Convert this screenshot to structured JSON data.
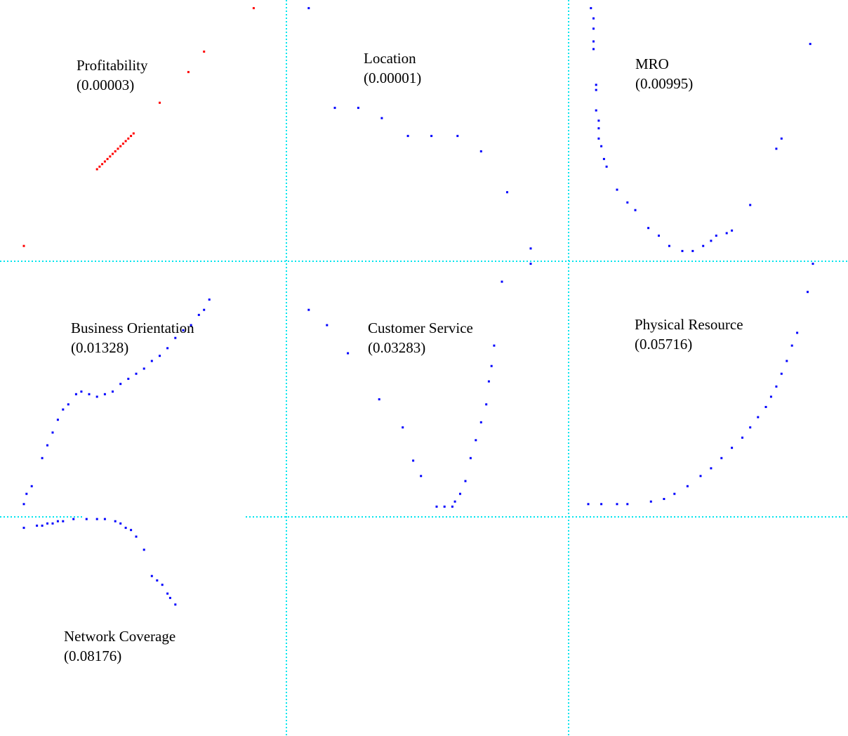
{
  "colors": {
    "grid": "#00e5ee",
    "highlight_series": "#ff0000",
    "series": "#0000ff",
    "background": "#ffffff"
  },
  "chart_data": {
    "type": "scatter",
    "grid": true,
    "axes_visible": false,
    "panels": [
      {
        "label": "Profitability",
        "value": "(0.00003)",
        "color": "#ff0000",
        "points": [
          [
            0.07,
            0.06
          ],
          [
            0.35,
            0.36
          ],
          [
            0.36,
            0.37
          ],
          [
            0.37,
            0.38
          ],
          [
            0.38,
            0.39
          ],
          [
            0.39,
            0.4
          ],
          [
            0.4,
            0.41
          ],
          [
            0.41,
            0.42
          ],
          [
            0.42,
            0.43
          ],
          [
            0.43,
            0.44
          ],
          [
            0.44,
            0.45
          ],
          [
            0.45,
            0.46
          ],
          [
            0.46,
            0.47
          ],
          [
            0.47,
            0.48
          ],
          [
            0.48,
            0.49
          ],
          [
            0.49,
            0.5
          ],
          [
            0.59,
            0.62
          ],
          [
            0.7,
            0.74
          ],
          [
            0.76,
            0.82
          ],
          [
            0.95,
            0.99
          ]
        ]
      },
      {
        "label": "Location",
        "value": "(0.00001)",
        "color": "#0000ff",
        "points": [
          [
            0.08,
            0.99
          ],
          [
            0.18,
            0.6
          ],
          [
            0.27,
            0.6
          ],
          [
            0.36,
            0.56
          ],
          [
            0.46,
            0.49
          ],
          [
            0.55,
            0.49
          ],
          [
            0.65,
            0.49
          ],
          [
            0.74,
            0.43
          ],
          [
            0.84,
            0.27
          ],
          [
            0.93,
            0.05
          ],
          [
            0.93,
            -0.01
          ]
        ]
      },
      {
        "label": "MRO",
        "value": "(0.00995)",
        "color": "#0000ff",
        "points": [
          [
            0.08,
            0.99
          ],
          [
            0.09,
            0.95
          ],
          [
            0.09,
            0.91
          ],
          [
            0.09,
            0.86
          ],
          [
            0.09,
            0.83
          ],
          [
            0.1,
            0.69
          ],
          [
            0.1,
            0.67
          ],
          [
            0.1,
            0.59
          ],
          [
            0.11,
            0.55
          ],
          [
            0.11,
            0.52
          ],
          [
            0.11,
            0.48
          ],
          [
            0.12,
            0.45
          ],
          [
            0.13,
            0.4
          ],
          [
            0.14,
            0.37
          ],
          [
            0.18,
            0.28
          ],
          [
            0.22,
            0.23
          ],
          [
            0.25,
            0.2
          ],
          [
            0.3,
            0.13
          ],
          [
            0.34,
            0.1
          ],
          [
            0.38,
            0.06
          ],
          [
            0.43,
            0.04
          ],
          [
            0.47,
            0.04
          ],
          [
            0.51,
            0.06
          ],
          [
            0.54,
            0.08
          ],
          [
            0.56,
            0.1
          ],
          [
            0.6,
            0.11
          ],
          [
            0.62,
            0.12
          ],
          [
            0.69,
            0.22
          ],
          [
            0.79,
            0.44
          ],
          [
            0.81,
            0.48
          ],
          [
            0.92,
            0.85
          ]
        ]
      },
      {
        "label": "Business Orientation",
        "value": "(0.01328)",
        "color": "#0000ff",
        "points": [
          [
            0.07,
            0.05
          ],
          [
            0.08,
            0.09
          ],
          [
            0.1,
            0.12
          ],
          [
            0.14,
            0.23
          ],
          [
            0.16,
            0.28
          ],
          [
            0.18,
            0.33
          ],
          [
            0.2,
            0.38
          ],
          [
            0.22,
            0.42
          ],
          [
            0.24,
            0.44
          ],
          [
            0.27,
            0.48
          ],
          [
            0.29,
            0.49
          ],
          [
            0.32,
            0.48
          ],
          [
            0.35,
            0.47
          ],
          [
            0.38,
            0.48
          ],
          [
            0.41,
            0.49
          ],
          [
            0.44,
            0.52
          ],
          [
            0.47,
            0.54
          ],
          [
            0.5,
            0.56
          ],
          [
            0.53,
            0.58
          ],
          [
            0.56,
            0.61
          ],
          [
            0.59,
            0.63
          ],
          [
            0.62,
            0.66
          ],
          [
            0.65,
            0.7
          ],
          [
            0.68,
            0.73
          ],
          [
            0.71,
            0.75
          ],
          [
            0.74,
            0.79
          ],
          [
            0.76,
            0.81
          ],
          [
            0.78,
            0.85
          ]
        ]
      },
      {
        "label": "Customer Service",
        "value": "(0.03283)",
        "color": "#0000ff",
        "points": [
          [
            0.08,
            0.81
          ],
          [
            0.15,
            0.75
          ],
          [
            0.23,
            0.64
          ],
          [
            0.35,
            0.46
          ],
          [
            0.44,
            0.35
          ],
          [
            0.48,
            0.22
          ],
          [
            0.51,
            0.16
          ],
          [
            0.57,
            0.04
          ],
          [
            0.6,
            0.04
          ],
          [
            0.63,
            0.04
          ],
          [
            0.64,
            0.06
          ],
          [
            0.66,
            0.09
          ],
          [
            0.68,
            0.14
          ],
          [
            0.7,
            0.23
          ],
          [
            0.72,
            0.3
          ],
          [
            0.74,
            0.37
          ],
          [
            0.76,
            0.44
          ],
          [
            0.77,
            0.53
          ],
          [
            0.78,
            0.59
          ],
          [
            0.79,
            0.67
          ],
          [
            0.82,
            0.92
          ]
        ]
      },
      {
        "label": "Physical Resource",
        "value": "(0.05716)",
        "color": "#0000ff",
        "points": [
          [
            0.07,
            0.05
          ],
          [
            0.12,
            0.05
          ],
          [
            0.18,
            0.05
          ],
          [
            0.22,
            0.05
          ],
          [
            0.31,
            0.06
          ],
          [
            0.36,
            0.07
          ],
          [
            0.4,
            0.09
          ],
          [
            0.45,
            0.12
          ],
          [
            0.5,
            0.16
          ],
          [
            0.54,
            0.19
          ],
          [
            0.58,
            0.23
          ],
          [
            0.62,
            0.27
          ],
          [
            0.66,
            0.31
          ],
          [
            0.69,
            0.35
          ],
          [
            0.72,
            0.39
          ],
          [
            0.75,
            0.43
          ],
          [
            0.77,
            0.47
          ],
          [
            0.79,
            0.51
          ],
          [
            0.81,
            0.56
          ],
          [
            0.83,
            0.61
          ],
          [
            0.85,
            0.67
          ],
          [
            0.87,
            0.72
          ],
          [
            0.91,
            0.88
          ],
          [
            0.93,
            0.99
          ]
        ]
      },
      {
        "label": "Network Coverage",
        "value": "(0.08176)",
        "color": "#0000ff",
        "points": [
          [
            0.07,
            0.95
          ],
          [
            0.12,
            0.96
          ],
          [
            0.14,
            0.96
          ],
          [
            0.16,
            0.97
          ],
          [
            0.18,
            0.97
          ],
          [
            0.2,
            0.98
          ],
          [
            0.22,
            0.98
          ],
          [
            0.26,
            0.99
          ],
          [
            0.31,
            0.99
          ],
          [
            0.35,
            0.99
          ],
          [
            0.38,
            0.99
          ],
          [
            0.42,
            0.98
          ],
          [
            0.44,
            0.97
          ],
          [
            0.46,
            0.95
          ],
          [
            0.48,
            0.94
          ],
          [
            0.5,
            0.91
          ],
          [
            0.53,
            0.85
          ],
          [
            0.56,
            0.73
          ],
          [
            0.58,
            0.71
          ],
          [
            0.6,
            0.69
          ],
          [
            0.62,
            0.65
          ],
          [
            0.63,
            0.63
          ],
          [
            0.65,
            0.6
          ]
        ]
      }
    ]
  }
}
